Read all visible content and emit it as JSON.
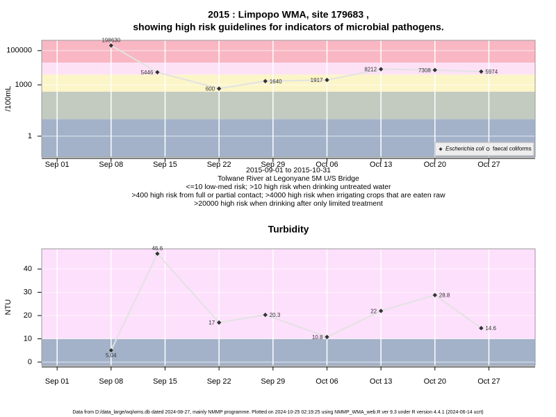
{
  "chart_data": [
    {
      "type": "line",
      "title": [
        "2015 : Limpopo WMA, site 179683 ,",
        "showing high risk guidelines for indicators of microbial pathogens."
      ],
      "ylabel": "/100mL",
      "log_y": true,
      "grid": true,
      "legend": "bottom-right",
      "x": [
        "2015-09-08",
        "2015-09-14",
        "2015-09-22",
        "2015-09-28",
        "2015-10-06",
        "2015-10-13",
        "2015-10-20",
        "2015-10-26"
      ],
      "series": [
        {
          "name": "Escherichia coli",
          "color": "#333333",
          "values": [
            198630,
            5446,
            600,
            1640,
            1917,
            8212,
            7308,
            5974
          ]
        },
        {
          "name": "faecal coliforms",
          "color": "#333333",
          "values": [
            null,
            null,
            null,
            null,
            null,
            null,
            null,
            null
          ]
        }
      ],
      "xlim": [
        "2015-08-30",
        "2015-11-02"
      ],
      "xticks": [
        {
          "value": "2015-09-01",
          "label": "Sep 01"
        },
        {
          "value": "2015-09-08",
          "label": "Sep 08"
        },
        {
          "value": "2015-09-15",
          "label": "Sep 15"
        },
        {
          "value": "2015-09-22",
          "label": "Sep 22"
        },
        {
          "value": "2015-09-29",
          "label": "Sep 29"
        },
        {
          "value": "2015-10-06",
          "label": "Oct 06"
        },
        {
          "value": "2015-10-13",
          "label": "Oct 13"
        },
        {
          "value": "2015-10-20",
          "label": "Oct 20"
        },
        {
          "value": "2015-10-27",
          "label": "Oct 27"
        }
      ],
      "ylim": [
        0.06,
        400000
      ],
      "yticks": [
        1,
        1000,
        100000
      ],
      "bands": [
        {
          "from": 0.06,
          "to": 10,
          "color": "#a3b2c9"
        },
        {
          "from": 10,
          "to": 400,
          "color": "#c3cbc1"
        },
        {
          "from": 400,
          "to": 4000,
          "color": "#fcf5c8"
        },
        {
          "from": 4000,
          "to": 20000,
          "color": "#fde2f6"
        },
        {
          "from": 20000,
          "to": 400000,
          "color": "#f8b7c3"
        }
      ],
      "notes": [
        "2015-09-01 to 2015-10-31",
        "Tolwane River at Legonyane 5M U/S Bridge",
        "<=10 low-med risk; >10 high risk when drinking untreated water",
        ">400 high risk from full or partial contact; >4000 high risk when irrigating crops that are eaten raw",
        ">20000 high risk when drinking after only limited treatment"
      ]
    },
    {
      "type": "line",
      "title": [
        "Turbidity"
      ],
      "ylabel": "NTU",
      "log_y": false,
      "grid": true,
      "x": [
        "2015-09-08",
        "2015-09-14",
        "2015-09-22",
        "2015-09-28",
        "2015-10-06",
        "2015-10-13",
        "2015-10-20",
        "2015-10-26"
      ],
      "series": [
        {
          "name": "Turbidity",
          "color": "#333333",
          "values": [
            5.04,
            46.6,
            17,
            20.3,
            10.8,
            22,
            28.8,
            14.6
          ]
        }
      ],
      "xlim": [
        "2015-08-30",
        "2015-11-02"
      ],
      "xticks": [
        {
          "value": "2015-09-01",
          "label": "Sep 01"
        },
        {
          "value": "2015-09-08",
          "label": "Sep 08"
        },
        {
          "value": "2015-09-15",
          "label": "Sep 15"
        },
        {
          "value": "2015-09-22",
          "label": "Sep 22"
        },
        {
          "value": "2015-09-29",
          "label": "Sep 29"
        },
        {
          "value": "2015-10-06",
          "label": "Oct 06"
        },
        {
          "value": "2015-10-13",
          "label": "Oct 13"
        },
        {
          "value": "2015-10-20",
          "label": "Oct 20"
        },
        {
          "value": "2015-10-27",
          "label": "Oct 27"
        }
      ],
      "ylim": [
        -1.5,
        48.7
      ],
      "yticks": [
        0,
        10,
        20,
        30,
        40
      ],
      "bands": [
        {
          "from": -1.5,
          "to": 10,
          "color": "#a3b2c9"
        },
        {
          "from": 10,
          "to": 48.7,
          "color": "#fde0fc"
        }
      ]
    }
  ],
  "footer": "Data from D:/data_large/wq/wms.db dated 2024-08-27, mainly NMMP programme. Plotted on 2024-10-25 02:19:25 using NMMP_WMA_web.R ver 9.3 under R version 4.4.1 (2024-06-14 ucrt)"
}
